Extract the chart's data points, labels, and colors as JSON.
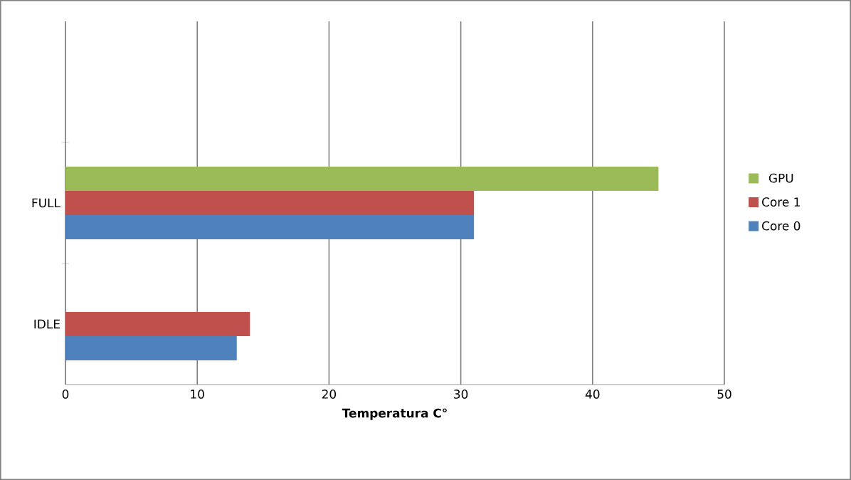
{
  "chart_data": {
    "type": "bar",
    "orientation": "horizontal",
    "xlabel": "Temperatura C°",
    "categories": [
      null,
      "FULL",
      "IDLE"
    ],
    "series": [
      {
        "name": "Core 0",
        "color": "#4f81bd",
        "values": [
          null,
          31,
          13
        ]
      },
      {
        "name": "Core 1",
        "color": "#c0504d",
        "values": [
          null,
          31,
          14
        ]
      },
      {
        "name": "GPU",
        "color": "#9bbb59",
        "values": [
          null,
          45,
          null
        ]
      }
    ],
    "xlim": [
      0,
      50
    ],
    "xticks": [
      0,
      10,
      20,
      30,
      40,
      50
    ],
    "grid": "x",
    "legend": "right"
  }
}
